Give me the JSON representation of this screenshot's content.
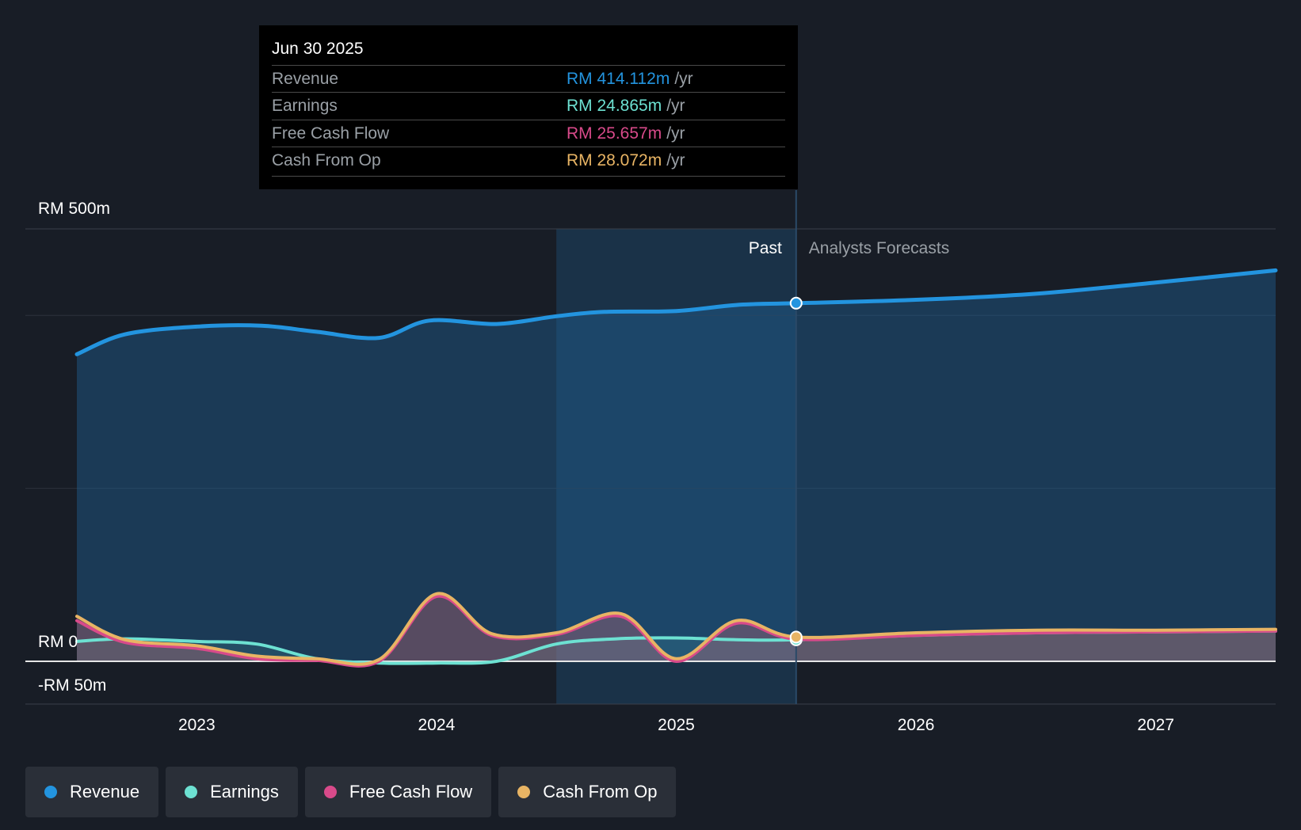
{
  "tooltip": {
    "date": "Jun 30 2025",
    "rows": [
      {
        "label": "Revenue",
        "value": "RM 414.112m",
        "unit": "/yr",
        "color": "#2394df"
      },
      {
        "label": "Earnings",
        "value": "RM 24.865m",
        "unit": "/yr",
        "color": "#6de1d2"
      },
      {
        "label": "Free Cash Flow",
        "value": "RM 25.657m",
        "unit": "/yr",
        "color": "#d84a8a"
      },
      {
        "label": "Cash From Op",
        "value": "RM 28.072m",
        "unit": "/yr",
        "color": "#e8b464"
      }
    ]
  },
  "legend": [
    {
      "label": "Revenue",
      "color": "#2394df"
    },
    {
      "label": "Earnings",
      "color": "#6de1d2"
    },
    {
      "label": "Free Cash Flow",
      "color": "#d84a8a"
    },
    {
      "label": "Cash From Op",
      "color": "#e8b464"
    }
  ],
  "chart_data": {
    "type": "line",
    "title": "",
    "y_labels": [
      "RM 500m",
      "RM 0",
      "-RM 50m"
    ],
    "ylim": [
      -50,
      500
    ],
    "xlim": [
      2022.5,
      2027.5
    ],
    "x_ticks": [
      "2023",
      "2024",
      "2025",
      "2026",
      "2027"
    ],
    "past_label": "Past",
    "forecast_label": "Analysts Forecasts",
    "divider_x": 2025.5,
    "past_shade_start": 2024.5,
    "series": [
      {
        "name": "Revenue",
        "color": "#2394df",
        "points": [
          [
            2022.5,
            355
          ],
          [
            2022.7,
            378
          ],
          [
            2023.0,
            387
          ],
          [
            2023.27,
            388
          ],
          [
            2023.5,
            381
          ],
          [
            2023.76,
            374
          ],
          [
            2023.97,
            394
          ],
          [
            2024.25,
            390
          ],
          [
            2024.5,
            399
          ],
          [
            2024.7,
            404
          ],
          [
            2025.0,
            405
          ],
          [
            2025.25,
            412
          ],
          [
            2025.5,
            414.112
          ],
          [
            2026.0,
            418
          ],
          [
            2026.5,
            425
          ],
          [
            2027.0,
            438
          ],
          [
            2027.5,
            452
          ]
        ]
      },
      {
        "name": "Earnings",
        "color": "#6de1d2",
        "points": [
          [
            2022.5,
            23
          ],
          [
            2022.7,
            26
          ],
          [
            2023.0,
            23
          ],
          [
            2023.25,
            20
          ],
          [
            2023.5,
            3
          ],
          [
            2023.76,
            -2
          ],
          [
            2024.0,
            -2
          ],
          [
            2024.25,
            0
          ],
          [
            2024.5,
            20
          ],
          [
            2024.75,
            26
          ],
          [
            2025.0,
            27
          ],
          [
            2025.25,
            25
          ],
          [
            2025.5,
            24.865
          ],
          [
            2026.0,
            30
          ],
          [
            2026.5,
            33
          ],
          [
            2027.0,
            34
          ],
          [
            2027.5,
            35
          ]
        ]
      },
      {
        "name": "Free Cash Flow",
        "color": "#d84a8a",
        "points": [
          [
            2022.5,
            47
          ],
          [
            2022.7,
            22
          ],
          [
            2023.0,
            15
          ],
          [
            2023.25,
            3
          ],
          [
            2023.5,
            1
          ],
          [
            2023.76,
            0
          ],
          [
            2024.0,
            75
          ],
          [
            2024.23,
            30
          ],
          [
            2024.5,
            31
          ],
          [
            2024.77,
            52
          ],
          [
            2025.0,
            0
          ],
          [
            2025.25,
            44
          ],
          [
            2025.5,
            25.657
          ],
          [
            2026.0,
            30
          ],
          [
            2026.5,
            33
          ],
          [
            2027.0,
            34
          ],
          [
            2027.5,
            35
          ]
        ]
      },
      {
        "name": "Cash From Op",
        "color": "#e8b464",
        "points": [
          [
            2022.5,
            52
          ],
          [
            2022.7,
            25
          ],
          [
            2023.0,
            18
          ],
          [
            2023.25,
            6
          ],
          [
            2023.5,
            3
          ],
          [
            2023.76,
            2
          ],
          [
            2024.0,
            78
          ],
          [
            2024.23,
            32
          ],
          [
            2024.5,
            33
          ],
          [
            2024.77,
            55
          ],
          [
            2025.0,
            3
          ],
          [
            2025.25,
            47
          ],
          [
            2025.5,
            28.072
          ],
          [
            2026.0,
            33
          ],
          [
            2026.5,
            36
          ],
          [
            2027.0,
            36
          ],
          [
            2027.5,
            37
          ]
        ]
      }
    ]
  }
}
